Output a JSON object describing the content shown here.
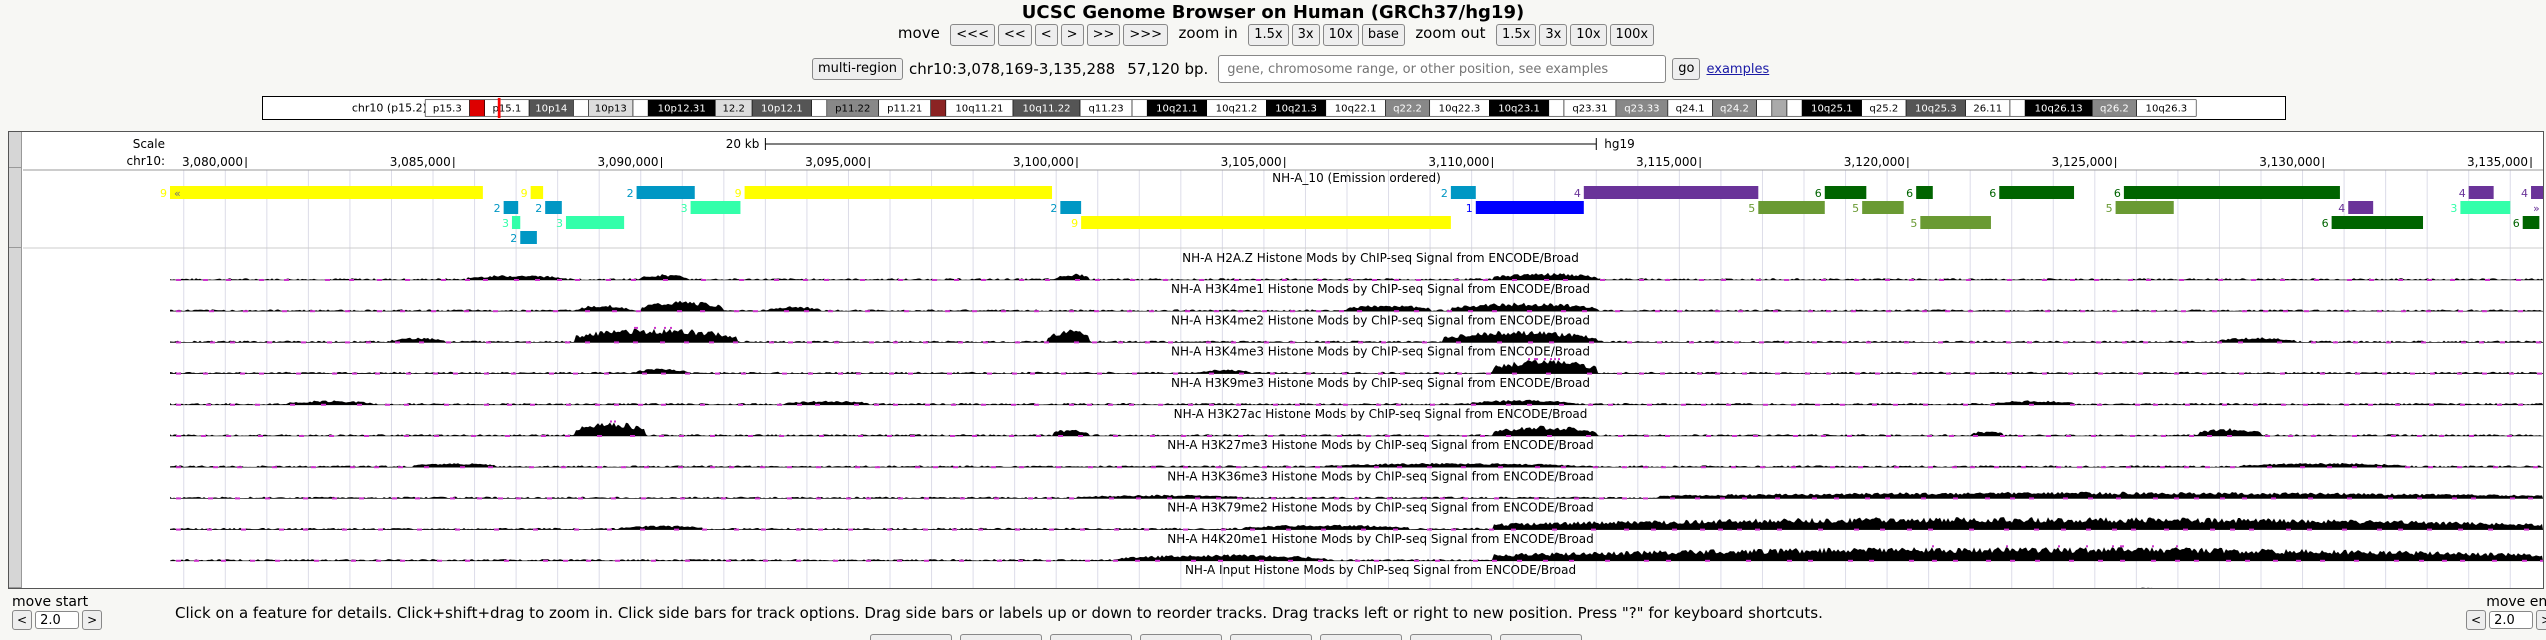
{
  "title": "UCSC Genome Browser on Human (GRCh37/hg19)",
  "nav": {
    "move_label": "move",
    "move_buttons": [
      "<<<",
      "<<",
      "<",
      ">",
      ">>",
      ">>>"
    ],
    "zoom_in_label": "zoom in",
    "zoom_in_buttons": [
      "1.5x",
      "3x",
      "10x",
      "base"
    ],
    "zoom_out_label": "zoom out",
    "zoom_out_buttons": [
      "1.5x",
      "3x",
      "10x",
      "100x"
    ]
  },
  "position": {
    "multi_region_label": "multi-region",
    "coords": "chr10:3,078,169-3,135,288",
    "size": "57,120 bp.",
    "search_placeholder": "gene, chromosome range, or other position, see examples",
    "go_label": "go",
    "examples_label": "examples"
  },
  "ideogram": {
    "chrom_label": "chr10 (p15.2)",
    "bands": [
      {
        "name": "p15.3",
        "stain": "#ffffff",
        "text": "#000000"
      },
      {
        "name": "",
        "stain": "#dd0000",
        "text": "#000000"
      },
      {
        "name": "p15.1",
        "stain": "#ffffff",
        "text": "#000000"
      },
      {
        "name": "10p14",
        "stain": "#555555",
        "text": "#ffffff"
      },
      {
        "name": "",
        "stain": "#ffffff",
        "text": "#000000"
      },
      {
        "name": "10p13",
        "stain": "#dddddd",
        "text": "#000000"
      },
      {
        "name": "",
        "stain": "#ffffff",
        "text": "#000000"
      },
      {
        "name": "10p12.31",
        "stain": "#000000",
        "text": "#ffffff"
      },
      {
        "name": "12.2",
        "stain": "#dddddd",
        "text": "#000000"
      },
      {
        "name": "10p12.1",
        "stain": "#555555",
        "text": "#ffffff"
      },
      {
        "name": "",
        "stain": "#ffffff",
        "text": "#000000"
      },
      {
        "name": "p11.22",
        "stain": "#888888",
        "text": "#000000"
      },
      {
        "name": "p11.21",
        "stain": "#ffffff",
        "text": "#000000"
      },
      {
        "name": "",
        "stain": "#8b2323",
        "text": "#000000"
      },
      {
        "name": "10q11.21",
        "stain": "#ffffff",
        "text": "#000000"
      },
      {
        "name": "10q11.22",
        "stain": "#555555",
        "text": "#ffffff"
      },
      {
        "name": "q11.23",
        "stain": "#ffffff",
        "text": "#000000"
      },
      {
        "name": "",
        "stain": "#ffffff",
        "text": "#000000"
      },
      {
        "name": "10q21.1",
        "stain": "#000000",
        "text": "#ffffff"
      },
      {
        "name": "10q21.2",
        "stain": "#ffffff",
        "text": "#000000"
      },
      {
        "name": "10q21.3",
        "stain": "#000000",
        "text": "#ffffff"
      },
      {
        "name": "10q22.1",
        "stain": "#ffffff",
        "text": "#000000"
      },
      {
        "name": "q22.2",
        "stain": "#888888",
        "text": "#ffffff"
      },
      {
        "name": "10q22.3",
        "stain": "#ffffff",
        "text": "#000000"
      },
      {
        "name": "10q23.1",
        "stain": "#000000",
        "text": "#ffffff"
      },
      {
        "name": "",
        "stain": "#ffffff",
        "text": "#000000"
      },
      {
        "name": "q23.31",
        "stain": "#ffffff",
        "text": "#000000"
      },
      {
        "name": "q23.33",
        "stain": "#888888",
        "text": "#ffffff"
      },
      {
        "name": "q24.1",
        "stain": "#ffffff",
        "text": "#000000"
      },
      {
        "name": "q24.2",
        "stain": "#888888",
        "text": "#ffffff"
      },
      {
        "name": "",
        "stain": "#ffffff",
        "text": "#000000"
      },
      {
        "name": "",
        "stain": "#aaaaaa",
        "text": "#000000"
      },
      {
        "name": "",
        "stain": "#ffffff",
        "text": "#000000"
      },
      {
        "name": "10q25.1",
        "stain": "#000000",
        "text": "#ffffff"
      },
      {
        "name": "q25.2",
        "stain": "#ffffff",
        "text": "#000000"
      },
      {
        "name": "10q25.3",
        "stain": "#555555",
        "text": "#ffffff"
      },
      {
        "name": "26.11",
        "stain": "#ffffff",
        "text": "#000000"
      },
      {
        "name": "",
        "stain": "#ffffff",
        "text": "#000000"
      },
      {
        "name": "10q26.13",
        "stain": "#000000",
        "text": "#ffffff"
      },
      {
        "name": "q26.2",
        "stain": "#888888",
        "text": "#ffffff"
      },
      {
        "name": "10q26.3",
        "stain": "#ffffff",
        "text": "#000000"
      }
    ]
  },
  "ruler": {
    "scale_label": "Scale",
    "chrom_label": "chr10:",
    "scale_bar_label": "20 kb",
    "assembly_label": "hg19",
    "range": [
      3078169,
      3135288
    ],
    "ticks": [
      3080000,
      3085000,
      3090000,
      3095000,
      3100000,
      3105000,
      3110000,
      3115000,
      3120000,
      3125000,
      3130000,
      3135000
    ],
    "tick_labels": [
      "3,080,000",
      "3,085,000",
      "3,090,000",
      "3,095,000",
      "3,100,000",
      "3,105,000",
      "3,110,000",
      "3,115,000",
      "3,120,000",
      "3,125,000",
      "3,130,000",
      "3,135,000"
    ]
  },
  "state_track": {
    "label": "NH-A_10 (Emission ordered)",
    "state_colors": {
      "1": "#0000ff",
      "2": "#0097c4",
      "3": "#33ffaa",
      "4": "#6a3399",
      "5": "#6a9a33",
      "6": "#006400",
      "9": "#ffff00"
    },
    "segments": [
      {
        "row": 0,
        "state": "9",
        "start": 3078169,
        "end": 3085700
      },
      {
        "row": 0,
        "state": "9",
        "start": 3086850,
        "end": 3087150
      },
      {
        "row": 0,
        "state": "2",
        "start": 3089400,
        "end": 3090800
      },
      {
        "row": 0,
        "state": "9",
        "start": 3092000,
        "end": 3099400
      },
      {
        "row": 0,
        "state": "2",
        "start": 3109000,
        "end": 3109600
      },
      {
        "row": 0,
        "state": "4",
        "start": 3112200,
        "end": 3116400
      },
      {
        "row": 0,
        "state": "6",
        "start": 3118000,
        "end": 3119000
      },
      {
        "row": 0,
        "state": "6",
        "start": 3120200,
        "end": 3120600
      },
      {
        "row": 0,
        "state": "6",
        "start": 3122200,
        "end": 3124000
      },
      {
        "row": 0,
        "state": "6",
        "start": 3125200,
        "end": 3130400
      },
      {
        "row": 0,
        "state": "4",
        "start": 3133500,
        "end": 3134100
      },
      {
        "row": 0,
        "state": "4",
        "start": 3135000,
        "end": 3135288
      },
      {
        "row": 1,
        "state": "2",
        "start": 3086200,
        "end": 3086550
      },
      {
        "row": 1,
        "state": "2",
        "start": 3087200,
        "end": 3087600
      },
      {
        "row": 1,
        "state": "3",
        "start": 3090700,
        "end": 3091900
      },
      {
        "row": 1,
        "state": "2",
        "start": 3099600,
        "end": 3100100
      },
      {
        "row": 1,
        "state": "1",
        "start": 3109600,
        "end": 3112200
      },
      {
        "row": 1,
        "state": "5",
        "start": 3116400,
        "end": 3118000
      },
      {
        "row": 1,
        "state": "5",
        "start": 3118900,
        "end": 3119900
      },
      {
        "row": 1,
        "state": "5",
        "start": 3125000,
        "end": 3126400
      },
      {
        "row": 1,
        "state": "4",
        "start": 3130600,
        "end": 3131200
      },
      {
        "row": 1,
        "state": "3",
        "start": 3133300,
        "end": 3134500
      },
      {
        "row": 2,
        "state": "3",
        "start": 3086400,
        "end": 3086600
      },
      {
        "row": 2,
        "state": "3",
        "start": 3087700,
        "end": 3089100
      },
      {
        "row": 2,
        "state": "9",
        "start": 3100100,
        "end": 3109000
      },
      {
        "row": 2,
        "state": "5",
        "start": 3120300,
        "end": 3122000
      },
      {
        "row": 2,
        "state": "6",
        "start": 3130200,
        "end": 3132400
      },
      {
        "row": 2,
        "state": "6",
        "start": 3134800,
        "end": 3135200
      },
      {
        "row": 3,
        "state": "2",
        "start": 3086600,
        "end": 3087000
      }
    ]
  },
  "signal_tracks": [
    {
      "label": "NH-A H2A.Z Histone Mods by ChIP-seq Signal from ENCODE/Broad",
      "peaks": [
        [
          3085300,
          3087700,
          0.35
        ],
        [
          3089500,
          3090600,
          0.4
        ],
        [
          3099500,
          3100300,
          0.45
        ],
        [
          3110000,
          3112500,
          0.5
        ]
      ]
    },
    {
      "label": "NH-A H3K4me1 Histone Mods by ChIP-seq Signal from ENCODE/Broad",
      "peaks": [
        [
          3088000,
          3089200,
          0.45
        ],
        [
          3089500,
          3091500,
          0.7
        ],
        [
          3092600,
          3093800,
          0.35
        ],
        [
          3106500,
          3108500,
          0.45
        ],
        [
          3109000,
          3112500,
          0.6
        ]
      ]
    },
    {
      "label": "NH-A H3K4me2 Histone Mods by ChIP-seq Signal from ENCODE/Broad",
      "peaks": [
        [
          3083500,
          3084800,
          0.35
        ],
        [
          3087900,
          3091800,
          1.0
        ],
        [
          3099300,
          3100300,
          0.9
        ],
        [
          3108800,
          3112500,
          0.8
        ],
        [
          3127500,
          3129300,
          0.35
        ]
      ]
    },
    {
      "label": "NH-A H3K4me3 Histone Mods by ChIP-seq Signal from ENCODE/Broad",
      "peaks": [
        [
          3089400,
          3090600,
          0.35
        ],
        [
          3103000,
          3104200,
          0.3
        ],
        [
          3110000,
          3112500,
          1.0
        ]
      ]
    },
    {
      "label": "NH-A H3K9me3 Histone Mods by ChIP-seq Signal from ENCODE/Broad",
      "peaks": [
        [
          3081000,
          3083000,
          0.3
        ],
        [
          3093000,
          3095000,
          0.3
        ],
        [
          3109500,
          3112000,
          0.35
        ],
        [
          3122000,
          3124000,
          0.3
        ]
      ]
    },
    {
      "label": "NH-A H3K27ac Histone Mods by ChIP-seq Signal from ENCODE/Broad",
      "peaks": [
        [
          3087900,
          3089600,
          1.0
        ],
        [
          3099400,
          3100300,
          0.5
        ],
        [
          3110000,
          3112500,
          0.7
        ],
        [
          3121500,
          3122300,
          0.35
        ],
        [
          3127000,
          3128500,
          0.55
        ]
      ]
    },
    {
      "label": "NH-A H3K27me3 Histone Mods by ChIP-seq Signal from ENCODE/Broad",
      "peaks": [
        [
          3084000,
          3086000,
          0.3
        ],
        [
          3106000,
          3112000,
          0.3
        ],
        [
          3128000,
          3132000,
          0.3
        ]
      ]
    },
    {
      "label": "NH-A H3K36me3 Histone Mods by ChIP-seq Signal from ENCODE/Broad",
      "peaks": [
        [
          3100000,
          3104000,
          0.25
        ],
        [
          3114000,
          3135288,
          0.45
        ]
      ]
    },
    {
      "label": "NH-A H3K79me2 Histone Mods by ChIP-seq Signal from ENCODE/Broad",
      "peaks": [
        [
          3089000,
          3091000,
          0.3
        ],
        [
          3104000,
          3108000,
          0.35
        ],
        [
          3110000,
          3135288,
          0.85
        ]
      ]
    },
    {
      "label": "NH-A H4K20me1 Histone Mods by ChIP-seq Signal from ENCODE/Broad",
      "peaks": [
        [
          3101000,
          3106000,
          0.45
        ],
        [
          3110000,
          3135288,
          0.95
        ]
      ]
    },
    {
      "label": "NH-A Input Histone Mods by ChIP-seq Signal from ENCODE/Broad",
      "peaks": [
        [
          3088000,
          3090000,
          0.25
        ],
        [
          3112000,
          3114000,
          0.25
        ],
        [
          3124000,
          3127000,
          0.3
        ]
      ]
    }
  ],
  "footer": {
    "help_text": "Click on a feature for details. Click+shift+drag to zoom in. Click side bars for track options. Drag side bars or labels up or down to reorder tracks. Drag tracks left or right to new position. Press \"?\" for keyboard shortcuts.",
    "move_start_label": "move start",
    "move_end_label": "move end",
    "move_start_value": "2.0",
    "move_end_value": "2.0",
    "left_arrow": "<",
    "right_arrow": ">"
  },
  "colors": {
    "signal": "#000000",
    "clip": "#cc33cc",
    "gridline": "#dcdce8",
    "gutter": "#d6d6d6"
  }
}
